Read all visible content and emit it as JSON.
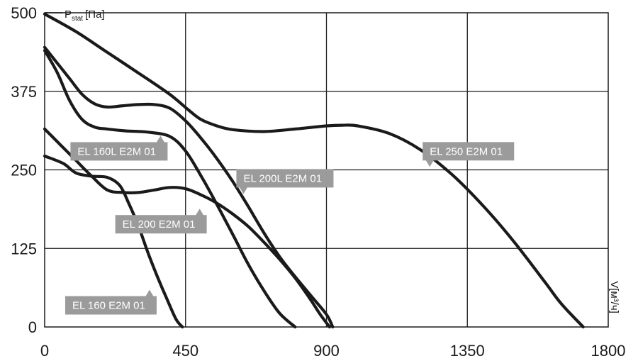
{
  "chart_data": {
    "type": "line",
    "xlabel": "V[м³/ч]",
    "ylabel": "P",
    "ylabel_sub": "stat",
    "ylabel_unit": "[Па]",
    "xlim": [
      0,
      1800
    ],
    "ylim": [
      0,
      500
    ],
    "x_ticks": [
      "0",
      "450",
      "900",
      "1350",
      "1800"
    ],
    "y_ticks": [
      "0",
      "125",
      "250",
      "375",
      "500"
    ],
    "grid": true,
    "series": [
      {
        "name": "EL 160 E2M 01",
        "x": [
          0,
          60,
          100,
          150,
          200,
          240,
          270,
          300,
          330,
          360,
          390,
          420,
          440
        ],
        "y": [
          272,
          260,
          245,
          240,
          238,
          225,
          195,
          160,
          118,
          80,
          45,
          12,
          0
        ]
      },
      {
        "name": "EL 160L E2M 01",
        "x": [
          0,
          40,
          80,
          120,
          160,
          200,
          260,
          330,
          400,
          450,
          500,
          550,
          600,
          650,
          700,
          750,
          800
        ],
        "y": [
          440,
          405,
          360,
          330,
          318,
          315,
          312,
          310,
          303,
          280,
          240,
          195,
          148,
          100,
          58,
          22,
          0
        ]
      },
      {
        "name": "EL 200 E2M 01",
        "x": [
          0,
          50,
          100,
          150,
          200,
          250,
          300,
          350,
          400,
          450,
          500,
          550,
          600,
          650,
          700,
          750,
          800,
          850,
          880,
          910
        ],
        "y": [
          315,
          290,
          265,
          240,
          218,
          214,
          214,
          218,
          222,
          220,
          210,
          197,
          180,
          160,
          135,
          108,
          78,
          43,
          20,
          0
        ]
      },
      {
        "name": "EL 200L E2M 01",
        "x": [
          0,
          40,
          80,
          120,
          160,
          200,
          250,
          300,
          350,
          400,
          450,
          500,
          550,
          600,
          650,
          700,
          750,
          800,
          850,
          900,
          920
        ],
        "y": [
          445,
          420,
          395,
          370,
          355,
          350,
          352,
          354,
          354,
          348,
          328,
          300,
          268,
          232,
          192,
          150,
          112,
          80,
          50,
          20,
          0
        ]
      },
      {
        "name": "EL 250 E2M 01",
        "x": [
          0,
          100,
          200,
          300,
          400,
          460,
          500,
          550,
          600,
          700,
          800,
          900,
          950,
          1000,
          1100,
          1200,
          1300,
          1400,
          1500,
          1600,
          1650,
          1720
        ],
        "y": [
          498,
          470,
          437,
          404,
          370,
          345,
          330,
          320,
          314,
          311,
          315,
          320,
          321,
          320,
          308,
          282,
          243,
          193,
          135,
          70,
          37,
          0
        ]
      }
    ],
    "annotations": [
      {
        "text": "EL 160L E2M 01",
        "pointer_x": 370,
        "pointer_y": 302,
        "box_side": "left",
        "pointer": "up"
      },
      {
        "text": "EL 200L E2M 01",
        "pointer_x": 635,
        "pointer_y": 214,
        "box_side": "right",
        "pointer": "down"
      },
      {
        "text": "EL 250 E2M 01",
        "pointer_x": 1230,
        "pointer_y": 257,
        "box_side": "right",
        "pointer": "down"
      },
      {
        "text": "EL 200 E2M 01",
        "pointer_x": 495,
        "pointer_y": 186,
        "box_side": "left",
        "pointer": "up"
      },
      {
        "text": "EL 160 E2M 01",
        "pointer_x": 335,
        "pointer_y": 57,
        "box_side": "left",
        "pointer": "up"
      }
    ]
  }
}
